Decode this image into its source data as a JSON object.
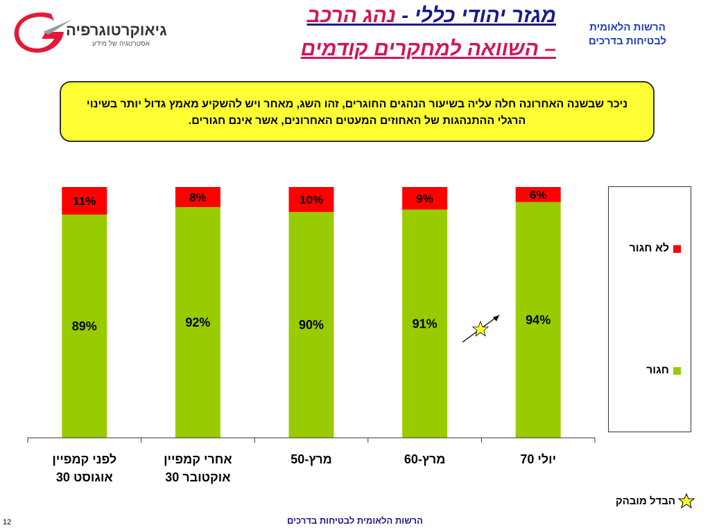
{
  "header": {
    "title_part1": "מגזר יהודי כללי - ",
    "title_part2": "נהג הרכב",
    "title_line2": "– השוואה למחקרים קודמים",
    "org_name": "הרשות הלאומית לבטיחות בדרכים",
    "logo_text": "גיאוקרטוגרפיה",
    "logo_subtitle": "אסטרטגיה של מידע"
  },
  "note": {
    "text": "ניכר שבשנה האחרונה חלה עליה בשיעור הנהגים החוגרים, זהו השג, מאחר ויש להשקיע מאמץ גדול יותר בשינוי הרגלי ההתנהגות של האחוזים המעטים האחרונים, אשר אינם חגורים."
  },
  "legend": {
    "not_belted": "לא חגור",
    "belted": "חגור"
  },
  "star_legend": "הבדל מובהק",
  "footer": "הרשות הלאומית לבטיחות בדרכים",
  "page_number": "12",
  "colors": {
    "belted": "#99cc00",
    "not_belted": "#ff0000",
    "title_blue": "#1a1a8c",
    "title_pink": "#d4145a",
    "note_bg": "#ffff33"
  },
  "chart_data": {
    "type": "bar",
    "stacked": true,
    "categories": [
      "לפני קמפיין\nאוגוסט  30",
      "אחרי  קמפיין\nאוקטובר 30",
      "מרץ-50",
      "מרץ-60",
      "יולי  70"
    ],
    "series": [
      {
        "name": "חגור",
        "values": [
          89,
          92,
          90,
          91,
          94
        ],
        "labels": [
          "89%",
          "92%",
          "90%",
          "91%",
          "94%"
        ]
      },
      {
        "name": "לא חגור",
        "values": [
          11,
          8,
          10,
          9,
          6
        ],
        "labels": [
          "11%",
          "8%",
          "10%",
          "9%",
          "6%"
        ]
      }
    ],
    "ylim": [
      0,
      100
    ],
    "legend_position": "right",
    "significant_change_marker": "star"
  }
}
